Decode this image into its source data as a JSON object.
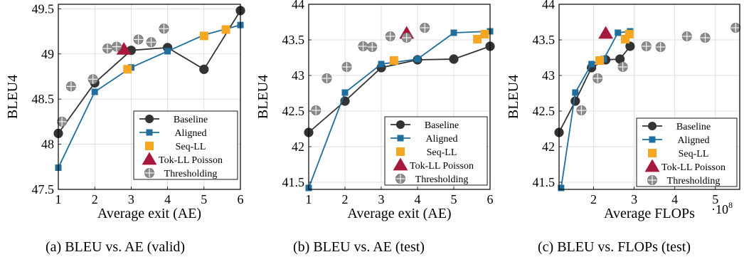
{
  "chart_data": [
    {
      "type": "line",
      "caption": "(a) BLEU vs. AE (valid)",
      "xlabel": "Average exit (AE)",
      "ylabel": "BLEU4",
      "xlim": [
        1,
        6
      ],
      "ylim": [
        47.5,
        49.55
      ],
      "xticks": [
        1,
        2,
        3,
        4,
        5,
        6
      ],
      "yticks": [
        47.5,
        48,
        48.5,
        49,
        49.5
      ],
      "xtick_labels": [
        "1",
        "2",
        "3",
        "4",
        "5",
        "6"
      ],
      "ytick_labels": [
        "47.5",
        "48",
        "48.5",
        "49",
        "49.5"
      ],
      "exponent_label": "",
      "grid": true,
      "legend_position": "lower-right",
      "series": [
        {
          "name": "Baseline",
          "kind": "line",
          "marker": "circle",
          "color": "#333333",
          "x": [
            1,
            2,
            3,
            4,
            5,
            6
          ],
          "y": [
            48.12,
            48.68,
            49.04,
            49.07,
            48.83,
            49.48
          ]
        },
        {
          "name": "Aligned",
          "kind": "line",
          "marker": "square",
          "color": "#1f6e9c",
          "x": [
            1,
            2,
            3,
            4,
            5,
            6
          ],
          "y": [
            47.74,
            48.58,
            48.85,
            49.03,
            49.21,
            49.32
          ]
        },
        {
          "name": "Seq-LL",
          "kind": "scatter",
          "marker": "square",
          "color": "#f5a623",
          "x": [
            2.9,
            5.0,
            5.6
          ],
          "y": [
            48.83,
            49.2,
            49.27
          ]
        },
        {
          "name": "Tok-LL Poisson",
          "kind": "scatter",
          "marker": "triangle",
          "color": "#a6193c",
          "x": [
            2.8
          ],
          "y": [
            49.05
          ]
        },
        {
          "name": "Thresholding",
          "kind": "scatter",
          "marker": "circleplus",
          "color": "#8c8c8c",
          "x": [
            1.1,
            1.35,
            1.95,
            2.35,
            2.6,
            3.2,
            3.55,
            3.9
          ],
          "y": [
            48.25,
            48.64,
            48.72,
            49.06,
            49.08,
            49.16,
            49.13,
            49.28
          ]
        }
      ]
    },
    {
      "type": "line",
      "caption": "(b) BLEU vs. AE (test)",
      "xlabel": "Average exit (AE)",
      "ylabel": "BLEU4",
      "xlim": [
        1,
        6
      ],
      "ylim": [
        41.4,
        44
      ],
      "xticks": [
        1,
        2,
        3,
        4,
        5,
        6
      ],
      "yticks": [
        41.5,
        42,
        42.5,
        43,
        43.5,
        44
      ],
      "xtick_labels": [
        "1",
        "2",
        "3",
        "4",
        "5",
        "6"
      ],
      "ytick_labels": [
        "41.5",
        "42",
        "42.5",
        "43",
        "43.5",
        "44"
      ],
      "exponent_label": "",
      "grid": true,
      "legend_position": "lower-right",
      "series": [
        {
          "name": "Baseline",
          "kind": "line",
          "marker": "circle",
          "color": "#333333",
          "x": [
            1,
            2,
            3,
            4,
            5,
            6
          ],
          "y": [
            42.2,
            42.64,
            43.11,
            43.22,
            43.23,
            43.41
          ]
        },
        {
          "name": "Aligned",
          "kind": "line",
          "marker": "square",
          "color": "#1f6e9c",
          "x": [
            1,
            2,
            3,
            4,
            5,
            6
          ],
          "y": [
            41.42,
            42.76,
            43.16,
            43.23,
            43.6,
            43.62
          ]
        },
        {
          "name": "Seq-LL",
          "kind": "scatter",
          "marker": "square",
          "color": "#f5a623",
          "x": [
            3.35,
            5.65,
            5.85
          ],
          "y": [
            43.21,
            43.51,
            43.58
          ]
        },
        {
          "name": "Tok-LL Poisson",
          "kind": "scatter",
          "marker": "triangle",
          "color": "#a6193c",
          "x": [
            3.7
          ],
          "y": [
            43.59
          ]
        },
        {
          "name": "Thresholding",
          "kind": "scatter",
          "marker": "circleplus",
          "color": "#8c8c8c",
          "x": [
            1.2,
            1.5,
            2.05,
            2.5,
            2.75,
            3.25,
            3.7,
            4.2
          ],
          "y": [
            42.51,
            42.96,
            43.12,
            43.41,
            43.4,
            43.55,
            43.53,
            43.67
          ]
        }
      ]
    },
    {
      "type": "line",
      "caption": "(c) BLEU vs. FLOPs (test)",
      "xlabel": "Average FLOPs",
      "ylabel": "BLEU4",
      "xlim": [
        1.15,
        5.6
      ],
      "ylim": [
        41.4,
        44
      ],
      "xticks": [
        2,
        3,
        4,
        5
      ],
      "yticks": [
        41.5,
        42,
        42.5,
        43,
        43.5,
        44
      ],
      "xtick_labels": [
        "2",
        "3",
        "4",
        "5"
      ],
      "ytick_labels": [
        "41.5",
        "42",
        "42.5",
        "43",
        "43.5",
        "44"
      ],
      "exponent_label": "·10",
      "exponent_power": "8",
      "grid": true,
      "legend_position": "lower-right",
      "series": [
        {
          "name": "Baseline",
          "kind": "line",
          "marker": "circle",
          "color": "#333333",
          "x": [
            1.15,
            1.55,
            1.95,
            2.3,
            2.65,
            2.9
          ],
          "y": [
            42.2,
            42.64,
            43.11,
            43.22,
            43.23,
            43.41
          ]
        },
        {
          "name": "Aligned",
          "kind": "line",
          "marker": "square",
          "color": "#1f6e9c",
          "x": [
            1.2,
            1.55,
            1.95,
            2.25,
            2.6,
            2.9
          ],
          "y": [
            41.42,
            42.76,
            43.16,
            43.23,
            43.6,
            43.62
          ]
        },
        {
          "name": "Seq-LL",
          "kind": "scatter",
          "marker": "square",
          "color": "#f5a623",
          "x": [
            2.15,
            2.78,
            2.88
          ],
          "y": [
            43.21,
            43.51,
            43.58
          ]
        },
        {
          "name": "Tok-LL Poisson",
          "kind": "scatter",
          "marker": "triangle",
          "color": "#a6193c",
          "x": [
            2.3
          ],
          "y": [
            43.59
          ]
        },
        {
          "name": "Thresholding",
          "kind": "scatter",
          "marker": "circleplus",
          "color": "#8c8c8c",
          "x": [
            1.7,
            2.1,
            2.72,
            3.3,
            3.65,
            4.3,
            4.75,
            5.5
          ],
          "y": [
            42.51,
            42.96,
            43.12,
            43.41,
            43.4,
            43.55,
            43.53,
            43.67
          ]
        }
      ]
    }
  ]
}
